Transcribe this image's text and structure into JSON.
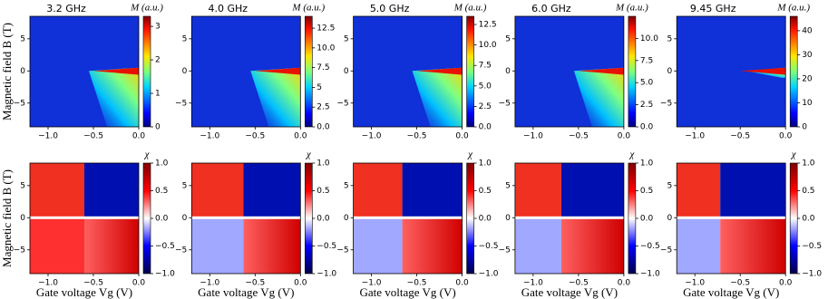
{
  "chart_data": [
    {
      "type": "heatmap",
      "title": "3.2 GHz",
      "ylabel": "Magnetic field B (T)",
      "colorbar_label": "M (a.u.)",
      "colormap": "jet",
      "xlim": [
        -1.2,
        0
      ],
      "xticks": [
        {
          "value": -1.0,
          "label": "−1.0"
        },
        {
          "value": -0.5,
          "label": "−0.5"
        },
        {
          "value": 0.0,
          "label": "0.0"
        }
      ],
      "ylim": [
        -8.7,
        8.5
      ],
      "yticks": [
        {
          "value": -5,
          "label": "−5"
        },
        0,
        5
      ],
      "clim": [
        0,
        3.3
      ],
      "cticks": [
        0,
        1,
        2,
        3
      ]
    },
    {
      "type": "heatmap",
      "title": "4.0 GHz",
      "colorbar_label": "M (a.u.)",
      "colormap": "jet",
      "xlim": [
        -1.2,
        0
      ],
      "xticks": [
        {
          "value": -1.0,
          "label": "−1.0"
        },
        {
          "value": -0.5,
          "label": "−0.5"
        },
        {
          "value": 0.0,
          "label": "0.0"
        }
      ],
      "ylim": [
        -8.7,
        8.5
      ],
      "yticks": [
        {
          "value": -5,
          "label": "−5"
        },
        0,
        5
      ],
      "clim": [
        0,
        14
      ],
      "cticks": [
        {
          "value": 0,
          "label": "0.0"
        },
        2.5,
        5,
        {
          "value": 7.5,
          "label": "7.5"
        },
        {
          "value": 10,
          "label": "10.0"
        },
        12.5
      ]
    },
    {
      "type": "heatmap",
      "title": "5.0 GHz",
      "colorbar_label": "M (a.u.)",
      "colormap": "jet",
      "xlim": [
        -1.2,
        0
      ],
      "xticks": [
        {
          "value": -1.0,
          "label": "−1.0"
        },
        {
          "value": -0.5,
          "label": "−0.5"
        },
        {
          "value": 0.0,
          "label": "0.0"
        }
      ],
      "ylim": [
        -8.7,
        8.5
      ],
      "yticks": [
        {
          "value": -5,
          "label": "−5"
        },
        0,
        5
      ],
      "clim": [
        0,
        13.5
      ],
      "cticks": [
        {
          "value": 0,
          "label": "0.0"
        },
        2.5,
        {
          "value": 5,
          "label": "5.0"
        },
        7.5,
        {
          "value": 10,
          "label": "10.0"
        },
        12.5
      ]
    },
    {
      "type": "heatmap",
      "title": "6.0 GHz",
      "colorbar_label": "M (a.u.)",
      "colormap": "jet",
      "xlim": [
        -1.2,
        0
      ],
      "xticks": [
        {
          "value": -1.0,
          "label": "−1.0"
        },
        {
          "value": -0.5,
          "label": "−0.5"
        },
        {
          "value": 0.0,
          "label": "0.0"
        }
      ],
      "ylim": [
        -8.7,
        8.5
      ],
      "yticks": [
        {
          "value": -5,
          "label": "−5"
        },
        0,
        5
      ],
      "clim": [
        0,
        12.5
      ],
      "cticks": [
        {
          "value": 0,
          "label": "0.0"
        },
        2.5,
        {
          "value": 5,
          "label": "5.0"
        },
        7.5,
        {
          "value": 10,
          "label": "10.0"
        }
      ]
    },
    {
      "type": "heatmap",
      "title": "9.45 GHz",
      "colorbar_label": "M (a.u.)",
      "colormap": "jet",
      "xlim": [
        -1.2,
        0
      ],
      "xticks": [
        {
          "value": -1.0,
          "label": "−1.0"
        },
        {
          "value": -0.5,
          "label": "−0.5"
        },
        {
          "value": 0.0,
          "label": "0.0"
        }
      ],
      "ylim": [
        -8.7,
        8.5
      ],
      "yticks": [
        {
          "value": -5,
          "label": "−5"
        },
        0,
        5
      ],
      "clim": [
        0,
        46
      ],
      "cticks": [
        0,
        10,
        20,
        30,
        40
      ]
    },
    {
      "type": "heatmap",
      "ylabel": "Magnetic field B (T)",
      "xlabel": "Gate voltage Vg (V)",
      "colorbar_label": "χ",
      "colormap": "seismic",
      "xlim": [
        -1.2,
        0
      ],
      "xticks": [
        {
          "value": -1.0,
          "label": "−1.0"
        },
        {
          "value": -0.5,
          "label": "−0.5"
        },
        {
          "value": 0.0,
          "label": "0.0"
        }
      ],
      "ylim": [
        -8.7,
        8.5
      ],
      "yticks": [
        {
          "value": -5,
          "label": "−5"
        },
        0,
        5
      ],
      "clim": [
        -1,
        1
      ],
      "cticks": [
        {
          "value": -1,
          "label": "−1.0"
        },
        {
          "value": -0.5,
          "label": "−0.5"
        },
        {
          "value": 0,
          "label": "0.0"
        },
        0.5,
        {
          "value": 1,
          "label": "1.0"
        }
      ]
    },
    {
      "type": "heatmap",
      "xlabel": "Gate voltage Vg (V)",
      "colorbar_label": "χ",
      "colormap": "seismic",
      "xlim": [
        -1.2,
        0
      ],
      "xticks": [
        {
          "value": -1.0,
          "label": "−1.0"
        },
        {
          "value": -0.5,
          "label": "−0.5"
        },
        {
          "value": 0.0,
          "label": "0.0"
        }
      ],
      "ylim": [
        -8.7,
        8.5
      ],
      "yticks": [
        {
          "value": -5,
          "label": "−5"
        },
        0,
        5
      ],
      "clim": [
        -1,
        1
      ],
      "cticks": [
        {
          "value": -1,
          "label": "−1.0"
        },
        {
          "value": -0.5,
          "label": "−0.5"
        },
        {
          "value": 0,
          "label": "0.0"
        },
        0.5,
        {
          "value": 1,
          "label": "1.0"
        }
      ]
    },
    {
      "type": "heatmap",
      "xlabel": "Gate voltage Vg (V)",
      "colorbar_label": "χ",
      "colormap": "seismic",
      "xlim": [
        -1.2,
        0
      ],
      "xticks": [
        {
          "value": -1.0,
          "label": "−1.0"
        },
        {
          "value": -0.5,
          "label": "−0.5"
        },
        {
          "value": 0.0,
          "label": "0.0"
        }
      ],
      "ylim": [
        -8.7,
        8.5
      ],
      "yticks": [
        {
          "value": -5,
          "label": "−5"
        },
        0,
        5
      ],
      "clim": [
        -1,
        1
      ],
      "cticks": [
        {
          "value": -1,
          "label": "−1.0"
        },
        {
          "value": -0.5,
          "label": "−0.5"
        },
        {
          "value": 0,
          "label": "0.0"
        },
        0.5,
        {
          "value": 1,
          "label": "1.0"
        }
      ]
    },
    {
      "type": "heatmap",
      "xlabel": "Gate voltage Vg (V)",
      "colorbar_label": "χ",
      "colormap": "seismic",
      "xlim": [
        -1.2,
        0
      ],
      "xticks": [
        {
          "value": -1.0,
          "label": "−1.0"
        },
        {
          "value": -0.5,
          "label": "−0.5"
        },
        {
          "value": 0.0,
          "label": "0.0"
        }
      ],
      "ylim": [
        -8.7,
        8.5
      ],
      "yticks": [
        {
          "value": -5,
          "label": "−5"
        },
        0,
        5
      ],
      "clim": [
        -1,
        1
      ],
      "cticks": [
        {
          "value": -1,
          "label": "−1.0"
        },
        {
          "value": -0.5,
          "label": "−0.5"
        },
        {
          "value": 0,
          "label": "0.0"
        },
        0.5,
        {
          "value": 1,
          "label": "1.0"
        }
      ]
    },
    {
      "type": "heatmap",
      "xlabel": "Gate voltage Vg (V)",
      "colorbar_label": "χ",
      "colormap": "seismic",
      "xlim": [
        -1.2,
        0
      ],
      "xticks": [
        {
          "value": -1.0,
          "label": "−1.0"
        },
        {
          "value": -0.5,
          "label": "−0.5"
        },
        {
          "value": 0.0,
          "label": "0.0"
        }
      ],
      "ylim": [
        -8.7,
        8.5
      ],
      "yticks": [
        {
          "value": -5,
          "label": "−5"
        },
        0,
        5
      ],
      "clim": [
        -1,
        1
      ],
      "cticks": [
        {
          "value": -1,
          "label": "−1.0"
        },
        {
          "value": -0.5,
          "label": "−0.5"
        },
        {
          "value": 0,
          "label": "0.0"
        },
        0.5,
        {
          "value": 1,
          "label": "1.0"
        }
      ]
    }
  ]
}
